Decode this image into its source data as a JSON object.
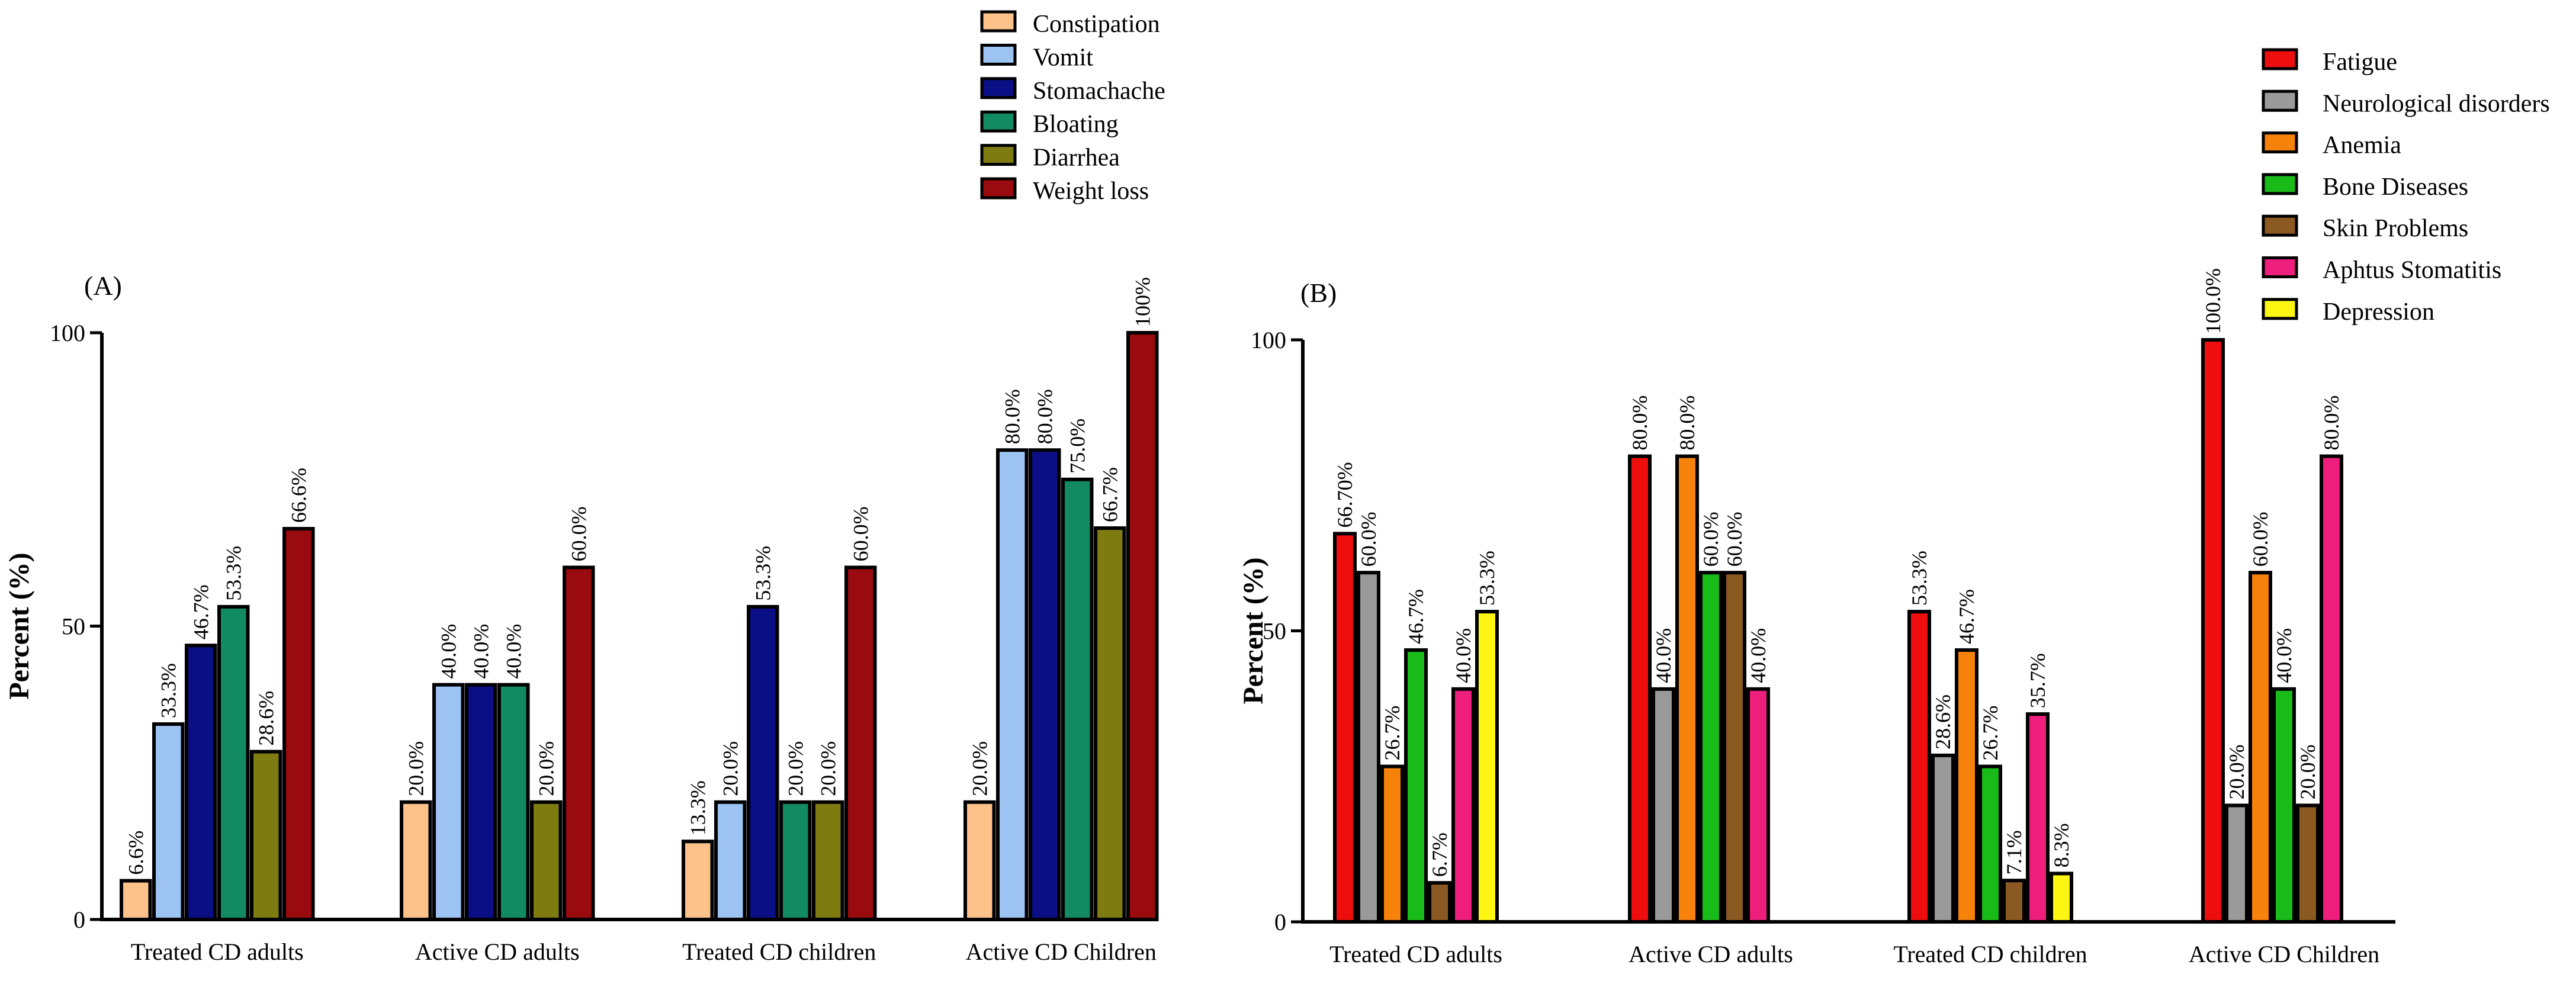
{
  "figure": {
    "panels": [
      "(A)",
      "(B)"
    ]
  },
  "colors": {
    "Constipation": "#fdc28a",
    "Vomit": "#9dc3f2",
    "Stomachache": "#0a0f85",
    "Bloating": "#128a62",
    "Diarrhea": "#7e7b11",
    "Weight loss": "#9a0b0f",
    "Fatigue": "#ee0e0e",
    "Neurological disorders": "#9a9a9a",
    "Anemia": "#f6820c",
    "Bone Diseases": "#19bb19",
    "Skin Problems": "#8b5a23",
    "Aphtus Stomatitis": "#ed1e7c",
    "Depression": "#fcf612"
  },
  "chart_data": [
    {
      "type": "bar",
      "panel_label": "(A)",
      "ylabel": "Percent (%)",
      "ylim": [
        0,
        100
      ],
      "yticks": [
        0,
        50,
        100
      ],
      "legend_position": "top-center",
      "categories": [
        "Treated CD adults",
        "Active CD adults",
        "Treated CD children",
        "Active CD Children"
      ],
      "series": [
        {
          "name": "Constipation",
          "values": [
            6.6,
            20.0,
            13.3,
            20.0
          ],
          "labels": [
            "6.6%",
            "20.0%",
            "13.3%",
            "20.0%"
          ]
        },
        {
          "name": "Vomit",
          "values": [
            33.3,
            40.0,
            20.0,
            80.0
          ],
          "labels": [
            "33.3%",
            "40.0%",
            "20.0%",
            "80.0%"
          ]
        },
        {
          "name": "Stomachache",
          "values": [
            46.7,
            40.0,
            53.3,
            80.0
          ],
          "labels": [
            "46.7%",
            "40.0%",
            "53.3%",
            "80.0%"
          ]
        },
        {
          "name": "Bloating",
          "values": [
            53.3,
            40.0,
            20.0,
            75.0
          ],
          "labels": [
            "53.3%",
            "40.0%",
            "20.0%",
            "75.0%"
          ]
        },
        {
          "name": "Diarrhea",
          "values": [
            28.6,
            20.0,
            20.0,
            66.7
          ],
          "labels": [
            "28.6%",
            "20.0%",
            "20.0%",
            "66.7%"
          ]
        },
        {
          "name": "Weight loss",
          "values": [
            66.6,
            60.0,
            60.0,
            100
          ],
          "labels": [
            "66.6%",
            "60.0%",
            "60.0%",
            "100%"
          ]
        }
      ]
    },
    {
      "type": "bar",
      "panel_label": "(B)",
      "ylabel": "Percent (%)",
      "ylim": [
        0,
        100
      ],
      "yticks": [
        0,
        50,
        100
      ],
      "legend_position": "top-right",
      "categories": [
        "Treated CD adults",
        "Active CD adults",
        "Treated CD children",
        "Active CD Children"
      ],
      "series": [
        {
          "name": "Fatigue",
          "values": [
            66.7,
            80.0,
            53.3,
            100.0
          ],
          "labels": [
            "66.70%",
            "80.0%",
            "53.3%",
            "100.0%"
          ]
        },
        {
          "name": "Neurological disorders",
          "values": [
            60.0,
            40.0,
            28.6,
            20.0
          ],
          "labels": [
            "60.0%",
            "40.0%",
            "28.6%",
            "20.0%"
          ]
        },
        {
          "name": "Anemia",
          "values": [
            26.7,
            80.0,
            46.7,
            60.0
          ],
          "labels": [
            "26.7%",
            "80.0%",
            "46.7%",
            "60.0%"
          ]
        },
        {
          "name": "Bone Diseases",
          "values": [
            46.7,
            60.0,
            26.7,
            40.0
          ],
          "labels": [
            "46.7%",
            "60.0%",
            "26.7%",
            "40.0%"
          ]
        },
        {
          "name": "Skin Problems",
          "values": [
            6.7,
            60.0,
            7.1,
            20.0
          ],
          "labels": [
            "6.7%",
            "60.0%",
            "7.1%",
            "20.0%"
          ]
        },
        {
          "name": "Aphtus Stomatitis",
          "values": [
            40.0,
            40.0,
            35.7,
            80.0
          ],
          "labels": [
            "40.0%",
            "40.0%",
            "35.7%",
            "80.0%"
          ]
        },
        {
          "name": "Depression",
          "values": [
            53.3,
            null,
            8.3,
            null
          ],
          "labels": [
            "53.3%",
            null,
            "8.3%",
            null
          ]
        }
      ]
    }
  ]
}
